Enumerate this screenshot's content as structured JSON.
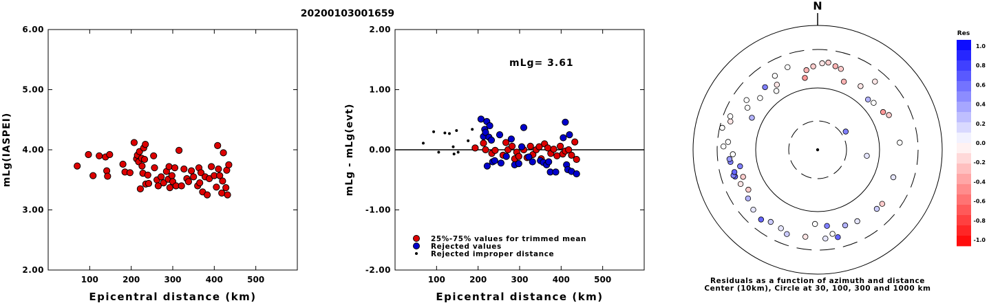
{
  "figure_id": "20200103001659",
  "chart_data": [
    {
      "type": "scatter",
      "name": "magnitude-vs-distance",
      "xlabel": "Epicentral distance (km)",
      "ylabel": "mLg(IASPEI)",
      "xlim": [
        0,
        600
      ],
      "ylim": [
        2.0,
        6.0
      ],
      "xticks": [
        "100",
        "200",
        "300",
        "400",
        "500"
      ],
      "yticks": [
        "2.00",
        "3.00",
        "4.00",
        "5.00",
        "6.00"
      ],
      "series": [
        {
          "color": "#dd0000",
          "points": [
            [
              70,
              3.73
            ],
            [
              97,
              3.92
            ],
            [
              108,
              3.57
            ],
            [
              123,
              3.9
            ],
            [
              138,
              3.88
            ],
            [
              141,
              3.65
            ],
            [
              143,
              3.56
            ],
            [
              148,
              3.92
            ],
            [
              180,
              3.76
            ],
            [
              185,
              3.63
            ],
            [
              197,
              3.62
            ],
            [
              207,
              4.12
            ],
            [
              213,
              3.85
            ],
            [
              215,
              3.91
            ],
            [
              218,
              3.8
            ],
            [
              220,
              3.97
            ],
            [
              222,
              3.35
            ],
            [
              225,
              3.86
            ],
            [
              226,
              3.73
            ],
            [
              228,
              3.61
            ],
            [
              230,
              4.03
            ],
            [
              232,
              3.84
            ],
            [
              234,
              4.09
            ],
            [
              235,
              3.43
            ],
            [
              240,
              3.58
            ],
            [
              242,
              3.44
            ],
            [
              254,
              3.9
            ],
            [
              256,
              3.7
            ],
            [
              262,
              3.5
            ],
            [
              265,
              3.4
            ],
            [
              272,
              3.55
            ],
            [
              278,
              3.45
            ],
            [
              285,
              3.64
            ],
            [
              289,
              3.51
            ],
            [
              291,
              3.72
            ],
            [
              293,
              3.37
            ],
            [
              298,
              3.57
            ],
            [
              300,
              3.47
            ],
            [
              305,
              3.7
            ],
            [
              308,
              3.4
            ],
            [
              315,
              3.99
            ],
            [
              321,
              3.4
            ],
            [
              327,
              3.68
            ],
            [
              334,
              3.52
            ],
            [
              338,
              3.47
            ],
            [
              345,
              3.65
            ],
            [
              350,
              3.55
            ],
            [
              360,
              3.4
            ],
            [
              363,
              3.7
            ],
            [
              365,
              3.45
            ],
            [
              368,
              3.62
            ],
            [
              372,
              3.3
            ],
            [
              378,
              3.55
            ],
            [
              383,
              3.25
            ],
            [
              388,
              3.52
            ],
            [
              393,
              3.72
            ],
            [
              400,
              3.57
            ],
            [
              405,
              3.38
            ],
            [
              408,
              4.07
            ],
            [
              410,
              3.68
            ],
            [
              413,
              3.57
            ],
            [
              418,
              3.28
            ],
            [
              420,
              3.48
            ],
            [
              422,
              3.95
            ],
            [
              428,
              3.37
            ],
            [
              430,
              3.66
            ],
            [
              432,
              3.25
            ],
            [
              435,
              3.75
            ]
          ]
        }
      ]
    },
    {
      "type": "scatter",
      "name": "residual-vs-distance",
      "xlabel": "Epicentral distance (km)",
      "ylabel": "mLg - mLg(evt)",
      "xlim": [
        0,
        600
      ],
      "ylim": [
        -2.0,
        2.0
      ],
      "xticks": [
        "100",
        "200",
        "300",
        "400",
        "500"
      ],
      "yticks": [
        "-2.00",
        "-1.00",
        "0.00",
        "1.00",
        "2.00"
      ],
      "annotation": "mLg= 3.61",
      "legend": [
        {
          "label": "25%-75% values for trimmed mean",
          "color": "#dd0000",
          "marker": "circle"
        },
        {
          "label": "Rejected values",
          "color": "#0000cc",
          "marker": "circle"
        },
        {
          "label": "Rejected improper distance",
          "color": "#000000",
          "marker": "dot"
        }
      ],
      "series": [
        {
          "color": "#dd0000",
          "points": [
            [
              193,
              0.03
            ],
            [
              213,
              0.11
            ],
            [
              218,
              0.0
            ],
            [
              233,
              -0.06
            ],
            [
              241,
              -0.01
            ],
            [
              260,
              -0.09
            ],
            [
              267,
              0.12
            ],
            [
              272,
              0.0
            ],
            [
              282,
              0.06
            ],
            [
              288,
              -0.15
            ],
            [
              293,
              -0.04
            ],
            [
              298,
              -0.11
            ],
            [
              310,
              0.0
            ],
            [
              318,
              -0.13
            ],
            [
              326,
              0.06
            ],
            [
              332,
              -0.08
            ],
            [
              340,
              0.0
            ],
            [
              347,
              0.05
            ],
            [
              352,
              -0.15
            ],
            [
              360,
              0.1
            ],
            [
              368,
              0.03
            ],
            [
              375,
              -0.06
            ],
            [
              382,
              0.01
            ],
            [
              390,
              -0.1
            ],
            [
              398,
              0.06
            ],
            [
              404,
              -0.07
            ],
            [
              410,
              -0.02
            ],
            [
              418,
              0.0
            ],
            [
              425,
              -0.09
            ],
            [
              433,
              0.13
            ],
            [
              437,
              -0.16
            ]
          ]
        },
        {
          "color": "#0000cc",
          "points": [
            [
              207,
              0.51
            ],
            [
              213,
              0.22
            ],
            [
              216,
              0.34
            ],
            [
              218,
              0.29
            ],
            [
              221,
              0.47
            ],
            [
              222,
              -0.27
            ],
            [
              226,
              0.21
            ],
            [
              228,
              0.4
            ],
            [
              232,
              0.16
            ],
            [
              235,
              -0.2
            ],
            [
              240,
              -0.18
            ],
            [
              252,
              0.25
            ],
            [
              255,
              -0.22
            ],
            [
              268,
              -0.11
            ],
            [
              280,
              0.18
            ],
            [
              288,
              -0.25
            ],
            [
              298,
              -0.23
            ],
            [
              305,
              0.05
            ],
            [
              310,
              0.37
            ],
            [
              322,
              -0.12
            ],
            [
              331,
              -0.2
            ],
            [
              350,
              -0.18
            ],
            [
              357,
              -0.21
            ],
            [
              365,
              -0.25
            ],
            [
              370,
              -0.2
            ],
            [
              374,
              -0.37
            ],
            [
              387,
              -0.37
            ],
            [
              405,
              0.2
            ],
            [
              410,
              0.46
            ],
            [
              413,
              -0.25
            ],
            [
              416,
              -0.33
            ],
            [
              420,
              0.25
            ],
            [
              425,
              -0.36
            ],
            [
              437,
              -0.4
            ]
          ]
        },
        {
          "color": "#000000",
          "points": [
            [
              68,
              0.11
            ],
            [
              93,
              0.3
            ],
            [
              105,
              -0.04
            ],
            [
              120,
              0.28
            ],
            [
              131,
              0.27
            ],
            [
              140,
              0.05
            ],
            [
              142,
              -0.07
            ],
            [
              148,
              0.32
            ],
            [
              152,
              -0.04
            ],
            [
              176,
              0.15
            ],
            [
              186,
              0.34
            ]
          ]
        }
      ]
    },
    {
      "type": "scatter",
      "name": "residual-azimuth-polar",
      "title": "N",
      "caption": [
        "Residuals as a function of azimuth and distance",
        "Center (10km), Circle at 30, 100, 300 and 1000 km"
      ],
      "colorbar": {
        "title": "Res",
        "range": [
          -1.0,
          1.0
        ],
        "labels": [
          "1.0",
          "0.8",
          "0.6",
          "0.4",
          "0.2",
          "0.0",
          "-0.2",
          "-0.4",
          "-0.6",
          "-0.8",
          "-1.0"
        ],
        "positive_color": "#0000ff",
        "negative_color": "#ff0000"
      },
      "points": [
        [
          12,
          2.38,
          -0.3
        ],
        [
          16,
          2.36,
          -0.2
        ],
        [
          21,
          2.18,
          -0.3
        ],
        [
          34,
          2.24,
          -0.1
        ],
        [
          40,
          2.44,
          -0.1
        ],
        [
          45,
          2.15,
          0.3
        ],
        [
          50,
          2.18,
          0.0
        ],
        [
          60,
          2.22,
          -0.4
        ],
        [
          64,
          2.28,
          -0.2
        ],
        [
          85,
          2.33,
          0.0
        ],
        [
          97,
          1.8,
          0.1
        ],
        [
          57,
          1.54,
          0.5
        ],
        [
          110,
          2.3,
          0.1
        ],
        [
          130,
          2.36,
          -0.2
        ],
        [
          135,
          2.35,
          0.2
        ],
        [
          151,
          2.32,
          0.1
        ],
        [
          160,
          2.3,
          0.3
        ],
        [
          167,
          2.45,
          0.6
        ],
        [
          170,
          2.38,
          0.0
        ],
        [
          175,
          2.44,
          0.1
        ],
        [
          173,
          2.24,
          0.5
        ],
        [
          182,
          2.2,
          0.0
        ],
        [
          188,
          2.42,
          -0.1
        ],
        [
          200,
          2.45,
          0.2
        ],
        [
          205,
          2.4,
          0.1
        ],
        [
          213,
          2.39,
          0.2
        ],
        [
          219,
          2.45,
          0.6
        ],
        [
          227,
          2.42,
          0.1
        ],
        [
          235,
          2.37,
          0.3
        ],
        [
          240,
          2.29,
          -0.2
        ],
        [
          246,
          2.36,
          -0.1
        ],
        [
          250,
          2.28,
          -0.2
        ],
        [
          252,
          2.4,
          0.6
        ],
        [
          253,
          2.42,
          0.5
        ],
        [
          255,
          2.39,
          0.6
        ],
        [
          258,
          2.28,
          0.5
        ],
        [
          262,
          2.42,
          0.5
        ],
        [
          264,
          2.43,
          0.4
        ],
        [
          267,
          2.37,
          0.0
        ],
        [
          272,
          2.52,
          0.0
        ],
        [
          275,
          2.45,
          0.0
        ],
        [
          283,
          2.58,
          0.0
        ],
        [
          288,
          2.48,
          -0.1
        ],
        [
          291,
          2.51,
          0.0
        ],
        [
          296,
          2.18,
          0.3
        ],
        [
          301,
          2.32,
          0.0
        ],
        [
          305,
          2.4,
          0.0
        ],
        [
          312,
          2.25,
          0.0
        ],
        [
          320,
          2.32,
          0.5
        ],
        [
          325,
          2.16,
          0.0
        ],
        [
          328,
          2.24,
          -0.1
        ],
        [
          330,
          2.38,
          0.0
        ],
        [
          340,
          2.42,
          0.0
        ],
        [
          350,
          2.18,
          -0.4
        ],
        [
          352,
          2.3,
          -0.3
        ],
        [
          357,
          2.35,
          -0.2
        ],
        [
          3,
          2.4,
          -0.1
        ],
        [
          7,
          2.42,
          -0.2
        ]
      ]
    }
  ]
}
